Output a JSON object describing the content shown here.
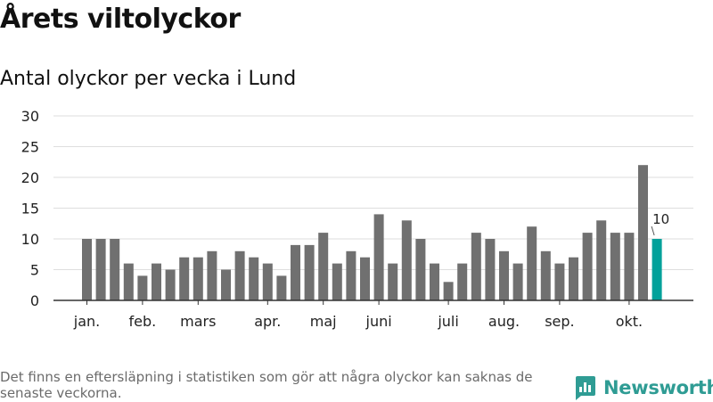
{
  "title": "Årets viltolyckor",
  "subtitle": "Antal olyckor per vecka i Lund",
  "footnote": "Det finns en eftersläpning i statistiken som gör att några olyckor kan saknas de senaste veckorna.",
  "brand": {
    "name": "Newsworthy",
    "icon": "newsworthy-logo-icon",
    "color": "#2f9c94"
  },
  "chart_data": {
    "type": "bar",
    "title": "Antal olyckor per vecka i Lund",
    "xlabel": "",
    "ylabel": "",
    "ylim": [
      0,
      30
    ],
    "yticks": [
      0,
      5,
      10,
      15,
      20,
      25,
      30
    ],
    "grid": true,
    "values": [
      10,
      10,
      10,
      6,
      4,
      6,
      5,
      7,
      7,
      8,
      5,
      8,
      7,
      6,
      4,
      9,
      9,
      11,
      6,
      8,
      7,
      14,
      6,
      13,
      10,
      6,
      3,
      6,
      11,
      10,
      8,
      6,
      12,
      8,
      6,
      7,
      11,
      13,
      11,
      11,
      22,
      10
    ],
    "month_labels": [
      {
        "label": "jan.",
        "index": 0
      },
      {
        "label": "feb.",
        "index": 4
      },
      {
        "label": "mars",
        "index": 8
      },
      {
        "label": "apr.",
        "index": 13
      },
      {
        "label": "maj",
        "index": 17
      },
      {
        "label": "juni",
        "index": 21
      },
      {
        "label": "juli",
        "index": 26
      },
      {
        "label": "aug.",
        "index": 30
      },
      {
        "label": "sep.",
        "index": 34
      },
      {
        "label": "okt.",
        "index": 39
      }
    ],
    "highlight_index": 41,
    "highlight_label": "10",
    "colors": {
      "bar": "#707070",
      "highlight": "#00a19a",
      "grid": "#dedede",
      "axis": "#333333"
    }
  }
}
